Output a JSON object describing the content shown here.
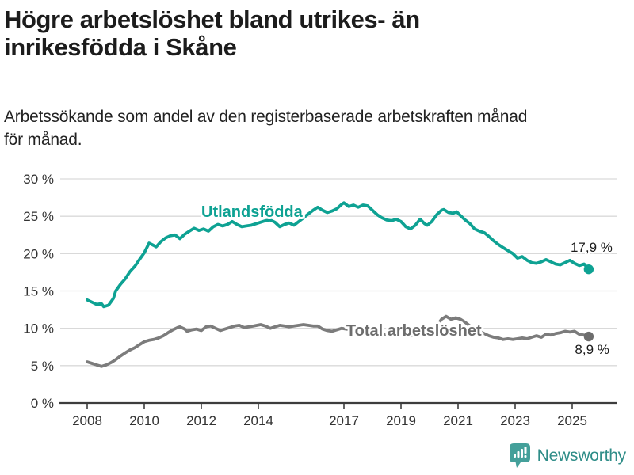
{
  "header": {
    "title_lines": [
      "Högre arbetslöshet bland utrikes- än",
      "inrikesfödda i Skåne"
    ],
    "subtitle_lines": [
      "Arbetssökande som andel av den registerbaserade arbetskraften månad",
      "för månad."
    ]
  },
  "chart_data": {
    "type": "line",
    "title": "Högre arbetslöshet bland utrikes- än inrikesfödda i Skåne",
    "subtitle": "Arbetssökande som andel av den registerbaserade arbetskraften månad för månad.",
    "xlabel": "",
    "ylabel": "",
    "x_axis": {
      "ticks": [
        2008,
        2010,
        2012,
        2014,
        2017,
        2019,
        2021,
        2023,
        2025
      ],
      "range": [
        2007.1,
        2026.6
      ]
    },
    "y_axis": {
      "ticks": [
        0,
        5,
        10,
        15,
        20,
        25,
        30
      ],
      "tick_suffix": " %",
      "range": [
        0,
        30
      ],
      "gridlines": true
    },
    "colors": {
      "grid": "#d9d9d9",
      "axis": "#3d3d3d",
      "tick_text": "#333333",
      "end_label_text": "#1c1c1c"
    },
    "series": [
      {
        "name": "Utlandsfödda",
        "color": "#0ea293",
        "label_color": "#0ea293",
        "label_anchor": {
          "year": 2012.0,
          "value": 24.9
        },
        "end_label": "17,9 %",
        "end_value": 17.9,
        "end_label_offset": {
          "dx": 30,
          "dy": -22
        },
        "points": [
          [
            2008.0,
            13.8
          ],
          [
            2008.17,
            13.5
          ],
          [
            2008.33,
            13.2
          ],
          [
            2008.5,
            13.3
          ],
          [
            2008.58,
            12.9
          ],
          [
            2008.75,
            13.1
          ],
          [
            2008.92,
            14.0
          ],
          [
            2009.0,
            15.0
          ],
          [
            2009.17,
            15.9
          ],
          [
            2009.33,
            16.6
          ],
          [
            2009.5,
            17.6
          ],
          [
            2009.67,
            18.3
          ],
          [
            2009.83,
            19.2
          ],
          [
            2010.0,
            20.1
          ],
          [
            2010.17,
            21.4
          ],
          [
            2010.33,
            21.1
          ],
          [
            2010.42,
            20.9
          ],
          [
            2010.58,
            21.6
          ],
          [
            2010.75,
            22.1
          ],
          [
            2010.92,
            22.4
          ],
          [
            2011.08,
            22.5
          ],
          [
            2011.25,
            22.0
          ],
          [
            2011.42,
            22.6
          ],
          [
            2011.58,
            23.0
          ],
          [
            2011.75,
            23.4
          ],
          [
            2011.92,
            23.1
          ],
          [
            2012.08,
            23.3
          ],
          [
            2012.25,
            23.0
          ],
          [
            2012.42,
            23.6
          ],
          [
            2012.58,
            23.9
          ],
          [
            2012.75,
            23.7
          ],
          [
            2012.92,
            23.9
          ],
          [
            2013.08,
            24.3
          ],
          [
            2013.25,
            23.9
          ],
          [
            2013.42,
            23.6
          ],
          [
            2013.58,
            23.7
          ],
          [
            2013.75,
            23.8
          ],
          [
            2013.92,
            24.0
          ],
          [
            2014.08,
            24.2
          ],
          [
            2014.25,
            24.4
          ],
          [
            2014.42,
            24.5
          ],
          [
            2014.58,
            24.2
          ],
          [
            2014.75,
            23.6
          ],
          [
            2014.92,
            23.9
          ],
          [
            2015.08,
            24.1
          ],
          [
            2015.25,
            23.8
          ],
          [
            2015.42,
            24.3
          ],
          [
            2015.58,
            24.8
          ],
          [
            2015.75,
            25.3
          ],
          [
            2015.92,
            25.8
          ],
          [
            2016.08,
            26.2
          ],
          [
            2016.25,
            25.8
          ],
          [
            2016.42,
            25.5
          ],
          [
            2016.58,
            25.7
          ],
          [
            2016.75,
            26.0
          ],
          [
            2016.92,
            26.6
          ],
          [
            2017.0,
            26.8
          ],
          [
            2017.17,
            26.3
          ],
          [
            2017.33,
            26.5
          ],
          [
            2017.5,
            26.2
          ],
          [
            2017.67,
            26.5
          ],
          [
            2017.83,
            26.4
          ],
          [
            2018.0,
            25.8
          ],
          [
            2018.17,
            25.2
          ],
          [
            2018.33,
            24.8
          ],
          [
            2018.5,
            24.5
          ],
          [
            2018.67,
            24.4
          ],
          [
            2018.83,
            24.6
          ],
          [
            2019.0,
            24.3
          ],
          [
            2019.17,
            23.6
          ],
          [
            2019.33,
            23.3
          ],
          [
            2019.5,
            23.8
          ],
          [
            2019.67,
            24.6
          ],
          [
            2019.83,
            24.0
          ],
          [
            2019.92,
            23.8
          ],
          [
            2020.08,
            24.3
          ],
          [
            2020.25,
            25.2
          ],
          [
            2020.42,
            25.8
          ],
          [
            2020.5,
            25.9
          ],
          [
            2020.67,
            25.5
          ],
          [
            2020.83,
            25.4
          ],
          [
            2020.95,
            25.6
          ],
          [
            2021.08,
            25.1
          ],
          [
            2021.25,
            24.5
          ],
          [
            2021.42,
            24.0
          ],
          [
            2021.58,
            23.3
          ],
          [
            2021.75,
            23.0
          ],
          [
            2021.92,
            22.8
          ],
          [
            2022.08,
            22.3
          ],
          [
            2022.25,
            21.7
          ],
          [
            2022.42,
            21.2
          ],
          [
            2022.58,
            20.8
          ],
          [
            2022.75,
            20.4
          ],
          [
            2022.92,
            20.0
          ],
          [
            2023.08,
            19.4
          ],
          [
            2023.25,
            19.6
          ],
          [
            2023.42,
            19.1
          ],
          [
            2023.58,
            18.8
          ],
          [
            2023.75,
            18.7
          ],
          [
            2023.92,
            18.9
          ],
          [
            2024.08,
            19.2
          ],
          [
            2024.25,
            18.9
          ],
          [
            2024.42,
            18.6
          ],
          [
            2024.58,
            18.5
          ],
          [
            2024.75,
            18.8
          ],
          [
            2024.92,
            19.1
          ],
          [
            2025.08,
            18.7
          ],
          [
            2025.25,
            18.4
          ],
          [
            2025.42,
            18.6
          ],
          [
            2025.58,
            17.9
          ]
        ]
      },
      {
        "name": "Total arbetslöshet",
        "color": "#7c7c7c",
        "label_color": "#6d6d6d",
        "label_anchor": {
          "year": 2017.08,
          "value": 9.0
        },
        "end_label": "8,9 %",
        "end_value": 8.9,
        "end_label_offset": {
          "dx": 26,
          "dy": 22
        },
        "points": [
          [
            2008.0,
            5.5
          ],
          [
            2008.17,
            5.3
          ],
          [
            2008.33,
            5.1
          ],
          [
            2008.5,
            4.9
          ],
          [
            2008.67,
            5.1
          ],
          [
            2008.83,
            5.4
          ],
          [
            2009.0,
            5.8
          ],
          [
            2009.17,
            6.3
          ],
          [
            2009.33,
            6.7
          ],
          [
            2009.5,
            7.1
          ],
          [
            2009.67,
            7.4
          ],
          [
            2009.83,
            7.8
          ],
          [
            2010.0,
            8.2
          ],
          [
            2010.17,
            8.4
          ],
          [
            2010.33,
            8.5
          ],
          [
            2010.5,
            8.7
          ],
          [
            2010.67,
            9.0
          ],
          [
            2010.83,
            9.4
          ],
          [
            2011.0,
            9.8
          ],
          [
            2011.17,
            10.1
          ],
          [
            2011.25,
            10.2
          ],
          [
            2011.42,
            9.9
          ],
          [
            2011.5,
            9.6
          ],
          [
            2011.67,
            9.8
          ],
          [
            2011.83,
            9.9
          ],
          [
            2012.0,
            9.7
          ],
          [
            2012.17,
            10.2
          ],
          [
            2012.33,
            10.3
          ],
          [
            2012.5,
            10.0
          ],
          [
            2012.67,
            9.7
          ],
          [
            2012.83,
            9.9
          ],
          [
            2013.0,
            10.1
          ],
          [
            2013.17,
            10.3
          ],
          [
            2013.33,
            10.4
          ],
          [
            2013.5,
            10.1
          ],
          [
            2013.67,
            10.2
          ],
          [
            2013.83,
            10.3
          ],
          [
            2014.08,
            10.5
          ],
          [
            2014.25,
            10.3
          ],
          [
            2014.42,
            10.0
          ],
          [
            2014.58,
            10.2
          ],
          [
            2014.75,
            10.4
          ],
          [
            2014.92,
            10.3
          ],
          [
            2015.08,
            10.2
          ],
          [
            2015.25,
            10.3
          ],
          [
            2015.42,
            10.4
          ],
          [
            2015.58,
            10.5
          ],
          [
            2015.75,
            10.4
          ],
          [
            2015.92,
            10.3
          ],
          [
            2016.08,
            10.3
          ],
          [
            2016.25,
            9.9
          ],
          [
            2016.42,
            9.7
          ],
          [
            2016.58,
            9.6
          ],
          [
            2016.75,
            9.8
          ],
          [
            2016.92,
            10.0
          ],
          [
            2017.08,
            9.9
          ],
          [
            2017.25,
            9.8
          ],
          [
            2017.5,
            9.7
          ],
          [
            2017.75,
            9.6
          ],
          [
            2018.0,
            9.5
          ],
          [
            2018.25,
            9.3
          ],
          [
            2018.5,
            9.2
          ],
          [
            2018.75,
            9.1
          ],
          [
            2019.0,
            9.1
          ],
          [
            2019.25,
            9.0
          ],
          [
            2019.5,
            9.1
          ],
          [
            2019.75,
            9.2
          ],
          [
            2019.92,
            9.3
          ],
          [
            2020.08,
            9.6
          ],
          [
            2020.25,
            10.3
          ],
          [
            2020.42,
            11.2
          ],
          [
            2020.58,
            11.6
          ],
          [
            2020.75,
            11.2
          ],
          [
            2020.92,
            11.4
          ],
          [
            2021.08,
            11.2
          ],
          [
            2021.25,
            10.8
          ],
          [
            2021.42,
            10.3
          ],
          [
            2021.58,
            9.9
          ],
          [
            2021.75,
            9.6
          ],
          [
            2021.92,
            9.3
          ],
          [
            2022.08,
            9.0
          ],
          [
            2022.25,
            8.8
          ],
          [
            2022.42,
            8.7
          ],
          [
            2022.58,
            8.5
          ],
          [
            2022.75,
            8.6
          ],
          [
            2022.92,
            8.5
          ],
          [
            2023.08,
            8.6
          ],
          [
            2023.25,
            8.7
          ],
          [
            2023.42,
            8.6
          ],
          [
            2023.58,
            8.8
          ],
          [
            2023.75,
            9.0
          ],
          [
            2023.92,
            8.8
          ],
          [
            2024.08,
            9.2
          ],
          [
            2024.25,
            9.1
          ],
          [
            2024.42,
            9.3
          ],
          [
            2024.58,
            9.4
          ],
          [
            2024.75,
            9.6
          ],
          [
            2024.92,
            9.5
          ],
          [
            2025.08,
            9.6
          ],
          [
            2025.25,
            9.2
          ],
          [
            2025.42,
            9.1
          ],
          [
            2025.58,
            8.9
          ]
        ]
      }
    ],
    "legend": "inline-labels"
  },
  "footer": {
    "brand": "Newsworthy",
    "brand_color": "#2f8d88",
    "icon_color": "#44a09a",
    "icon": "newsworthy-bubble-chart-icon"
  }
}
